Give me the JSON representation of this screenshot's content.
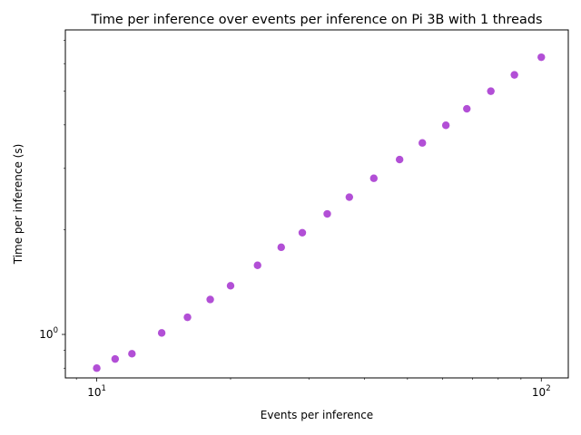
{
  "chart_data": {
    "type": "scatter",
    "title": "Time per inference over events per inference on Pi 3B with 1 threads",
    "xlabel": "Events per inference",
    "ylabel": "Time per inference (s)",
    "x_scale": "log",
    "y_scale": "log",
    "xlim": [
      8.5,
      115
    ],
    "ylim": [
      0.75,
      7.5
    ],
    "x_tick_labels": [
      {
        "value": 10,
        "base": "10",
        "exp": "1"
      },
      {
        "value": 100,
        "base": "10",
        "exp": "2"
      }
    ],
    "y_tick_labels": [
      {
        "value": 1,
        "base": "10",
        "exp": "0"
      }
    ],
    "grid": false,
    "legend": "none",
    "marker_color": "#b24fd6",
    "series": [
      {
        "x": [
          10,
          11,
          12,
          14,
          16,
          18,
          20,
          23,
          26,
          29,
          33,
          37,
          42,
          48,
          54,
          61,
          68,
          77,
          87,
          100
        ],
        "y": [
          0.8,
          0.85,
          0.88,
          1.01,
          1.12,
          1.26,
          1.38,
          1.58,
          1.78,
          1.96,
          2.22,
          2.48,
          2.81,
          3.18,
          3.55,
          3.99,
          4.45,
          5.0,
          5.57,
          6.26
        ]
      }
    ]
  }
}
